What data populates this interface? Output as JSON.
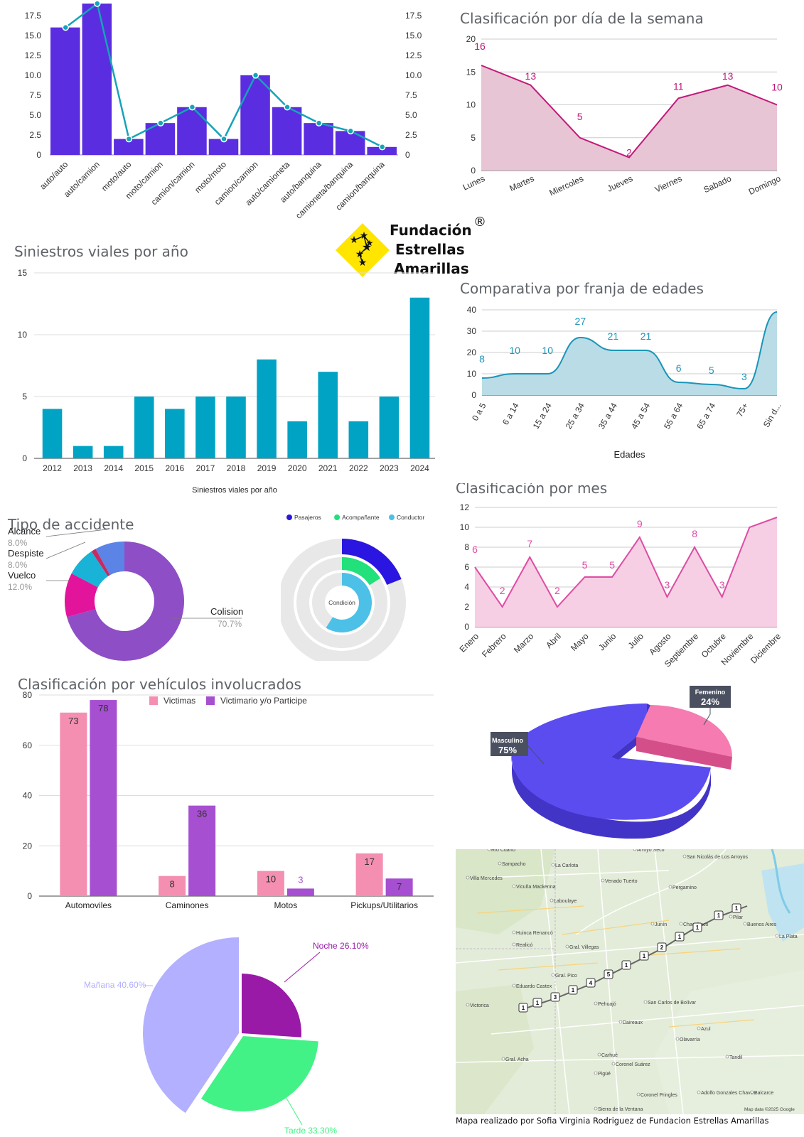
{
  "logo": {
    "line1": "Fundación",
    "line2": "Estrellas",
    "line3": "Amarillas",
    "registered": "®"
  },
  "map": {
    "credit": "Mapa realizado por Sofia Virginia Rodriguez de Fundacion Estrellas Amarillas",
    "map_data": "Map data ©2025 Google",
    "places": [
      "Río Cuarto",
      "Arroyo Seco",
      "Sampacho",
      "La Carlota",
      "San Nicolás de Los Arroyos",
      "Villa Mercedes",
      "Venado Tuerto",
      "Pergamino",
      "Vicuña Mackenna",
      "Laboulaye",
      "Junín",
      "Chacabuco",
      "Pilar",
      "Buenos Aires",
      "La Plata",
      "Huinca Renancó",
      "Realicó",
      "Gral. Villegas",
      "Gral. Pico",
      "Eduardo Castex",
      "Victorica",
      "Pehuajó",
      "San Carlos de Bolívar",
      "Daireaux",
      "Azul",
      "Olavarría",
      "Carhué",
      "Gral. Acha",
      "Pigüé",
      "Coronel Suárez",
      "Tandil",
      "Coronel Pringles",
      "Adolfo Gonzales Chaves",
      "Balcarce",
      "Sierra de la Ventana"
    ],
    "route_markers": [
      "1",
      "1",
      "3",
      "1",
      "4",
      "5",
      "1",
      "1",
      "2",
      "1",
      "1",
      "1",
      "1"
    ]
  },
  "chart_data": [
    {
      "id": "vehicle_pairs",
      "type": "bar",
      "title": "",
      "categories": [
        "auto/auto",
        "auto/camion",
        "moto/auto",
        "moto/camion",
        "camion/camion",
        "moto/moto",
        "camion/camion",
        "auto/camioneta",
        "auto/banquina",
        "camioneta/banquina",
        "camion/banquina"
      ],
      "series": [
        {
          "values": [
            16,
            19,
            2,
            4,
            6,
            2,
            10,
            6,
            4,
            3,
            1
          ],
          "color": "#5b2de0"
        },
        {
          "values": [
            16,
            19,
            2,
            4,
            6,
            2,
            10,
            6,
            4,
            3,
            1
          ],
          "color": "#16a3b8"
        }
      ],
      "yticks": [
        "0",
        "2.5",
        "5.0",
        "7.5",
        "10.0",
        "12.5",
        "15.0",
        "17.5"
      ],
      "ylim": [
        0,
        19
      ]
    },
    {
      "id": "weekday",
      "type": "area",
      "title": "Clasificación por día de la semana",
      "categories": [
        "Lunes",
        "Martes",
        "Miercoles",
        "Jueves",
        "Viernes",
        "Sabado",
        "Domingo"
      ],
      "values": [
        16,
        13,
        5,
        2,
        11,
        13,
        10
      ],
      "labels": [
        "16",
        "13",
        "5",
        "2",
        "11",
        "13",
        "10"
      ],
      "yticks": [
        "0",
        "5",
        "10",
        "15",
        "20"
      ],
      "ylim": [
        0,
        20
      ],
      "color": "#c2187a",
      "fill": "#e8c5d4"
    },
    {
      "id": "per_year",
      "type": "bar",
      "title": "Siniestros viales por año",
      "xlabel": "Siniestros viales por año",
      "categories": [
        "2012",
        "2013",
        "2014",
        "2015",
        "2016",
        "2017",
        "2018",
        "2019",
        "2020",
        "2021",
        "2022",
        "2023",
        "2024"
      ],
      "values": [
        4,
        1,
        1,
        5,
        4,
        5,
        5,
        8,
        3,
        7,
        3,
        5,
        13
      ],
      "yticks": [
        "0",
        "5",
        "10",
        "15"
      ],
      "ylim": [
        0,
        15
      ],
      "color": "#00a3c4"
    },
    {
      "id": "age_bands",
      "type": "area",
      "title": "Comparativa por franja de edades",
      "xlabel": "Edades",
      "categories": [
        "0 a 5",
        "6 a 14",
        "15 a 24",
        "25 a 34",
        "35 a 44",
        "45 a 54",
        "55 a 64",
        "65 a 74",
        "75+",
        "Sin d..."
      ],
      "values": [
        8,
        10,
        10,
        27,
        21,
        21,
        6,
        5,
        3,
        39
      ],
      "labels": [
        "8",
        "10",
        "10",
        "27",
        "21",
        "21",
        "6",
        "5",
        "3",
        ""
      ],
      "yticks": [
        "0",
        "10",
        "20",
        "30",
        "40"
      ],
      "ylim": [
        0,
        40
      ],
      "color": "#1b95b8",
      "fill": "#b9dce6"
    },
    {
      "id": "accident_type",
      "type": "pie",
      "title": "Tipo de accidente",
      "slices": [
        {
          "label": "Colision",
          "pct_label": "70.7%",
          "value": 70.7,
          "color": "#8e4ec6"
        },
        {
          "label": "Vuelco",
          "pct_label": "12.0%",
          "value": 12.0,
          "color": "#e3149c"
        },
        {
          "label": "Despiste",
          "pct_label": "8.0%",
          "value": 8.0,
          "color": "#18b3d6"
        },
        {
          "label": "",
          "pct_label": "",
          "value": 1.3,
          "color": "#c62a63"
        },
        {
          "label": "Alcance",
          "pct_label": "8.0%",
          "value": 8.0,
          "color": "#5b84e6"
        }
      ]
    },
    {
      "id": "condition",
      "type": "pie",
      "title": "",
      "center_label": "Condición",
      "legend": [
        {
          "name": "Pasajeros",
          "color": "#2a16e0"
        },
        {
          "name": "Acompañante",
          "color": "#22e07a"
        },
        {
          "name": "Conductor",
          "color": "#4cc0e6"
        }
      ],
      "rings": [
        {
          "name": "Pasajeros",
          "fraction": 0.19,
          "color": "#2a16e0"
        },
        {
          "name": "Acompañante",
          "fraction": 0.16,
          "color": "#22e07a"
        },
        {
          "name": "Conductor",
          "fraction": 0.59,
          "color": "#4cc0e6"
        }
      ]
    },
    {
      "id": "per_month",
      "type": "area",
      "title": "Clasificación por mes",
      "categories": [
        "Enero",
        "Febrero",
        "Marzo",
        "Abril",
        "Mayo",
        "Junio",
        "Julio",
        "Agosto",
        "Septiembre",
        "Octubre",
        "Noviembre",
        "Diciembre"
      ],
      "values": [
        6,
        2,
        7,
        2,
        5,
        5,
        9,
        3,
        8,
        3,
        10,
        11
      ],
      "labels": [
        "6",
        "2",
        "7",
        "2",
        "5",
        "5",
        "9",
        "3",
        "8",
        "3",
        "",
        ""
      ],
      "yticks": [
        "0",
        "2",
        "4",
        "6",
        "8",
        "10",
        "12"
      ],
      "ylim": [
        0,
        12
      ],
      "color": "#dd4da4",
      "fill": "#f7cfe4"
    },
    {
      "id": "vehicles_involved",
      "type": "bar",
      "title": "Clasificación por vehículos involucrados",
      "categories": [
        "Automoviles",
        "Caminones",
        "Motos",
        "Pickups/Utilitarios"
      ],
      "series": [
        {
          "name": "Victimas",
          "values": [
            73,
            8,
            10,
            17
          ],
          "color": "#f48fb1"
        },
        {
          "name": "Victimario y/o Participe",
          "values": [
            78,
            36,
            3,
            7
          ],
          "color": "#a64fd0"
        }
      ],
      "yticks": [
        "0",
        "20",
        "40",
        "60",
        "80"
      ],
      "ylim": [
        0,
        80
      ]
    },
    {
      "id": "gender",
      "type": "pie",
      "title": "",
      "slices": [
        {
          "label": "Masculino",
          "pct_label": "75%",
          "value": 75,
          "color": "#5b4cf0",
          "side": "#4334c8"
        },
        {
          "label": "Femenino",
          "pct_label": "24%",
          "value": 24,
          "color": "#f57bb0",
          "side": "#d44f8a"
        }
      ]
    },
    {
      "id": "time_of_day",
      "type": "pie",
      "title": "",
      "slices": [
        {
          "label": "Noche 26.10%",
          "value": 26.1,
          "color": "#9a1aa8"
        },
        {
          "label": "Tarde 33.30%",
          "value": 33.3,
          "color": "#42f286"
        },
        {
          "label": "Mañana 40.60%",
          "value": 40.6,
          "color": "#b3b0ff"
        }
      ]
    }
  ]
}
